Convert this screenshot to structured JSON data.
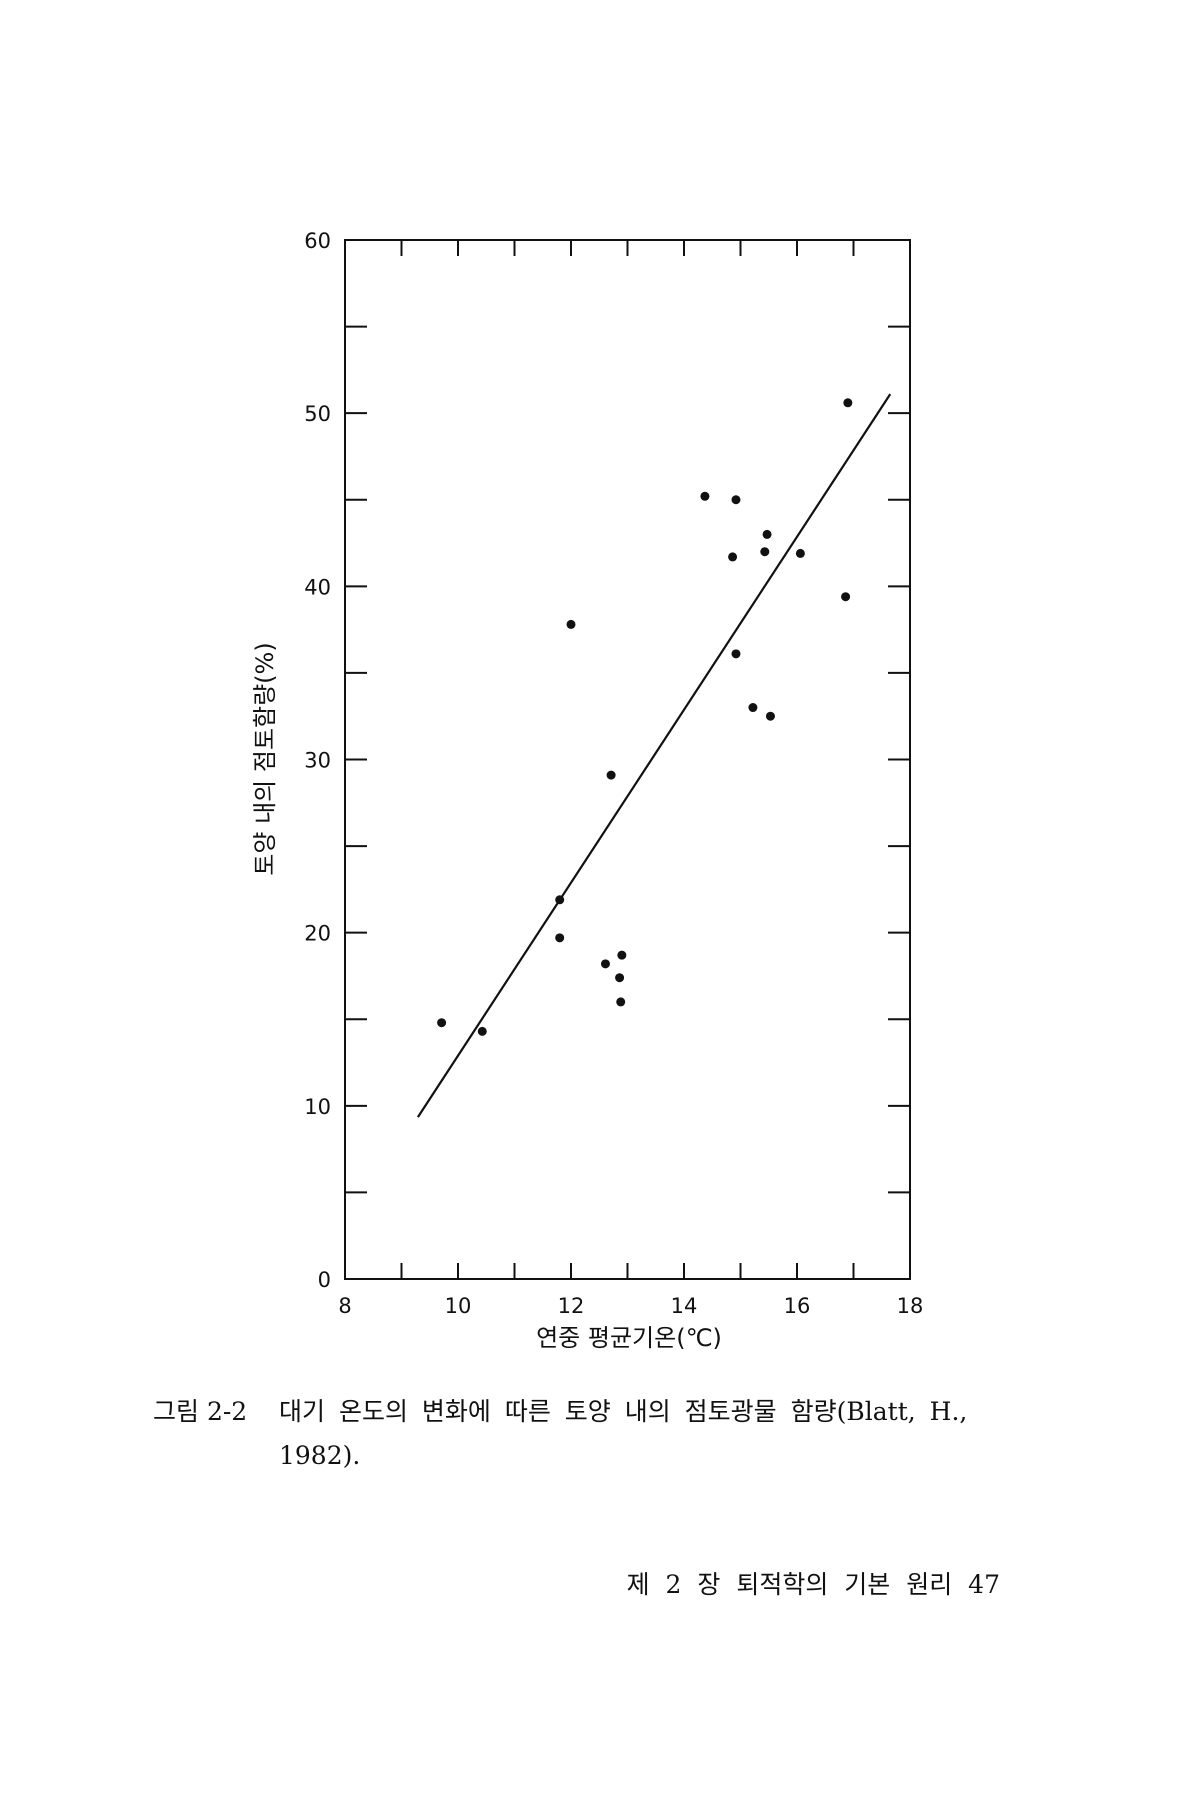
{
  "chart_data": {
    "type": "scatter",
    "xlabel": "연중 평균기온(℃)",
    "ylabel": "토양 내의 점토함량(%)",
    "x": [
      9.71,
      10.43,
      11.8,
      11.8,
      12.0,
      12.71,
      12.61,
      12.9,
      12.86,
      12.88,
      14.37,
      14.92,
      14.86,
      15.47,
      15.43,
      14.92,
      15.22,
      15.53,
      16.06,
      16.9,
      16.86
    ],
    "values": [
      14.8,
      14.3,
      21.9,
      19.7,
      37.8,
      29.1,
      18.2,
      18.7,
      17.4,
      16.0,
      45.2,
      45.0,
      41.7,
      43.0,
      42.0,
      36.1,
      33.0,
      32.5,
      41.9,
      50.6,
      39.4
    ],
    "color": "#111111",
    "trendline": {
      "x": [
        9.29,
        17.65
      ],
      "y": [
        9.35,
        51.1
      ]
    },
    "xlim": [
      8,
      18
    ],
    "xticks": [
      8,
      10,
      12,
      14,
      16,
      18
    ],
    "xminorticks": [
      9,
      11,
      13,
      15,
      17
    ],
    "ylim": [
      0,
      60
    ],
    "yticks": [
      0,
      10,
      20,
      30,
      40,
      50,
      60
    ],
    "yminorticks": [
      5,
      15,
      25,
      35,
      45,
      55
    ],
    "grid": false
  },
  "caption": {
    "label": "그림 2-2",
    "text": "대기 온도의 변화에 따른 토양 내의 점토광물 함량(Blatt, H., 1982)."
  },
  "footer": "제 2 장  퇴적학의 기본 원리  47"
}
